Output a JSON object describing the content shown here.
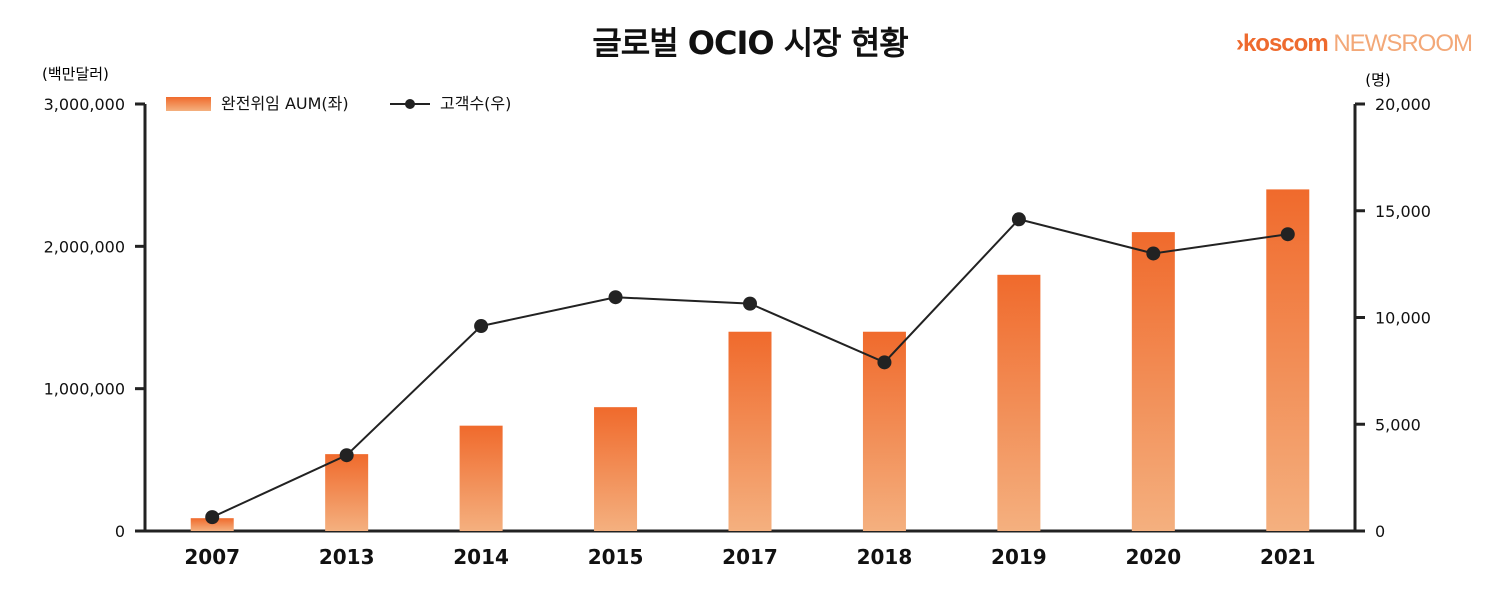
{
  "header": {
    "title": "글로벌 OCIO 시장 현황",
    "brand_arrow": "›",
    "brand_name": "koscom",
    "brand_suffix": "NEWSROOM"
  },
  "chart_data": {
    "type": "bar",
    "title": "글로벌 OCIO 시장 현황",
    "categories": [
      "2007",
      "2013",
      "2014",
      "2015",
      "2017",
      "2018",
      "2019",
      "2020",
      "2021"
    ],
    "series": [
      {
        "name": "완전위임 AUM(좌)",
        "type": "bar",
        "axis": "left",
        "values": [
          90000,
          540000,
          740000,
          870000,
          1400000,
          1400000,
          1800000,
          2100000,
          2400000
        ]
      },
      {
        "name": "고객수(우)",
        "type": "line",
        "axis": "right",
        "values": [
          650,
          3550,
          9600,
          10950,
          10650,
          7900,
          14600,
          13000,
          13900
        ]
      }
    ],
    "left_axis": {
      "unit_label": "(백만달러)",
      "ylim": [
        0,
        3000000
      ],
      "ticks": [
        0,
        1000000,
        2000000,
        3000000
      ],
      "tick_labels": [
        "0",
        "1,000,000",
        "2,000,000",
        "3,000,000"
      ]
    },
    "right_axis": {
      "unit_label": "(명)",
      "ylim": [
        0,
        20000
      ],
      "ticks": [
        0,
        5000,
        10000,
        15000,
        20000
      ],
      "tick_labels": [
        "0",
        "5,000",
        "10,000",
        "15,000",
        "20,000"
      ]
    },
    "legend_position": "top-left",
    "grid": false,
    "colors": {
      "bar_top": "#f06a2c",
      "bar_bottom": "#f4b07f",
      "line": "#222222",
      "axis": "#222222"
    }
  }
}
